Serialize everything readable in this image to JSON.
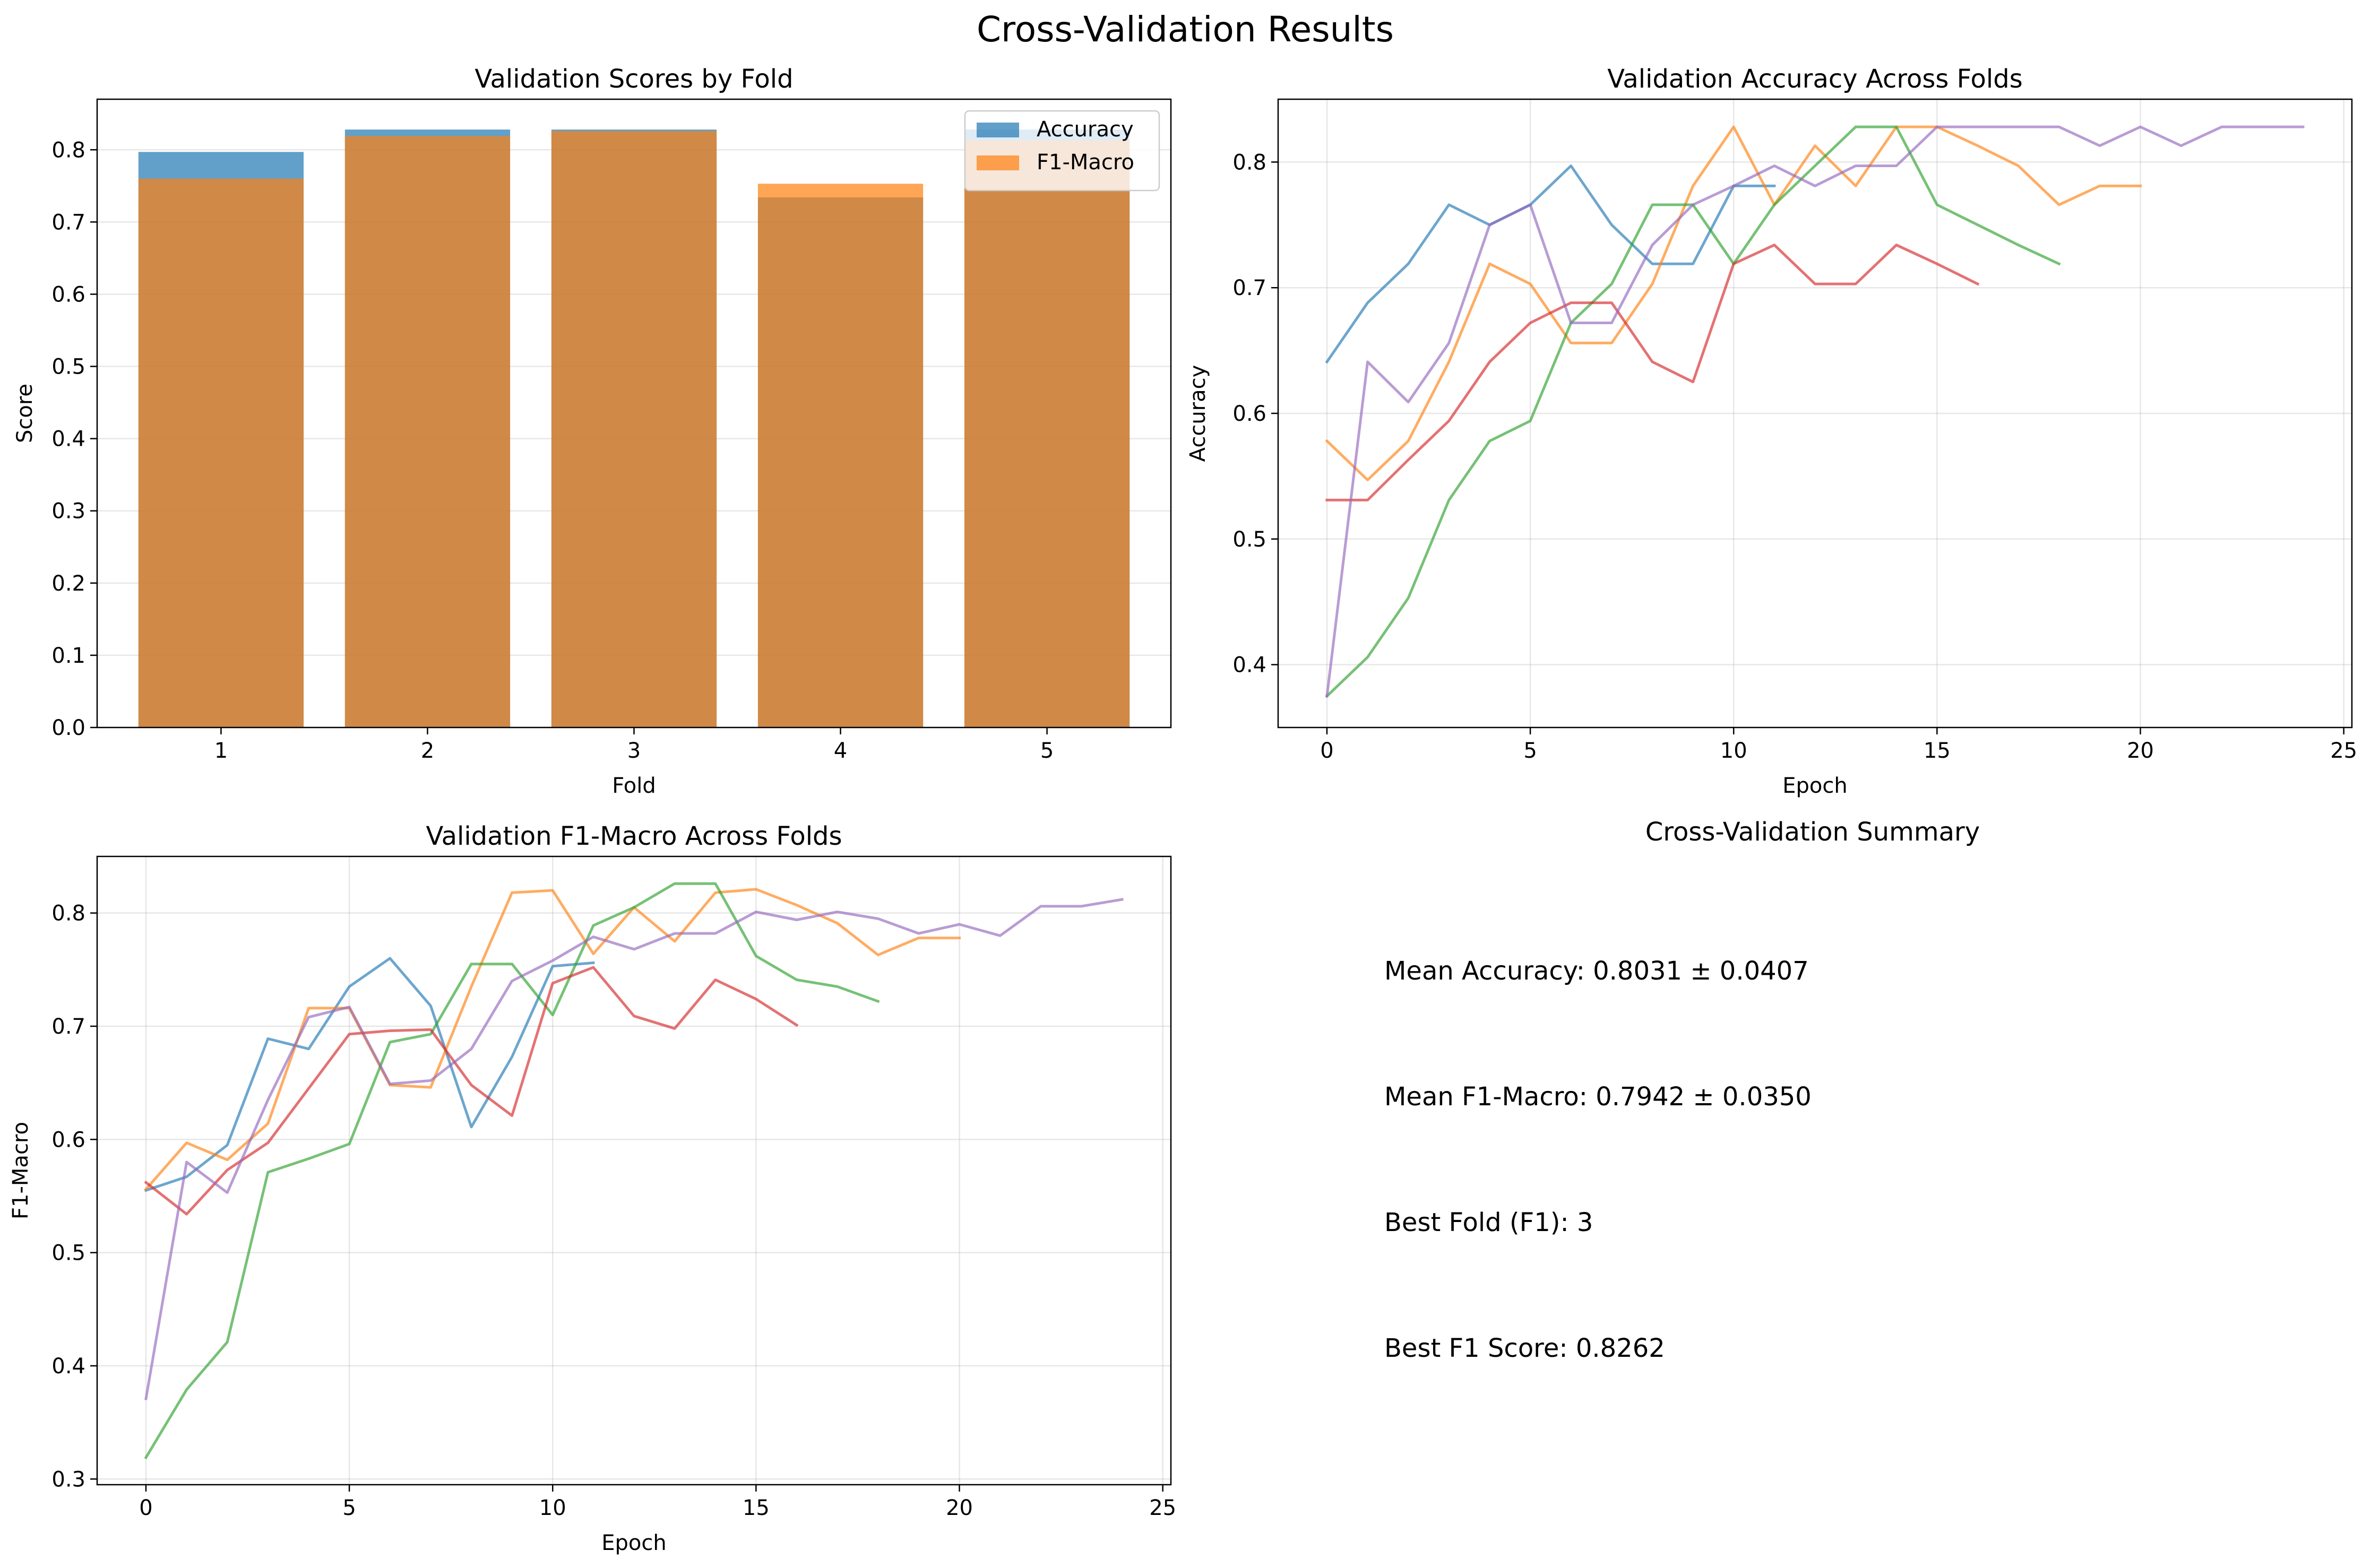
{
  "figure": {
    "suptitle": "Cross-Validation Results"
  },
  "chart_data": [
    {
      "type": "bar",
      "title": "Validation Scores by Fold",
      "xlabel": "Fold",
      "ylabel": "Score",
      "categories": [
        "1",
        "2",
        "3",
        "4",
        "5"
      ],
      "ylim": [
        0,
        0.87
      ],
      "yticks": [
        0.0,
        0.1,
        0.2,
        0.3,
        0.4,
        0.5,
        0.6,
        0.7,
        0.8
      ],
      "grid": true,
      "legend": "top-right",
      "series": [
        {
          "name": "Accuracy",
          "color": "#1f77b4",
          "values": [
            0.797,
            0.828,
            0.828,
            0.734,
            0.828
          ]
        },
        {
          "name": "F1-Macro",
          "color": "#ff7f0e",
          "values": [
            0.76,
            0.819,
            0.826,
            0.753,
            0.813
          ]
        }
      ]
    },
    {
      "type": "line",
      "title": "Validation Accuracy Across Folds",
      "xlabel": "Epoch",
      "ylabel": "Accuracy",
      "xlim": [
        -1.2,
        25.2
      ],
      "ylim": [
        0.35,
        0.85
      ],
      "xticks": [
        0,
        5,
        10,
        15,
        20,
        25
      ],
      "yticks": [
        0.4,
        0.5,
        0.6,
        0.7,
        0.8
      ],
      "grid": true,
      "series": [
        {
          "color": "#1f77b4",
          "values": [
            0.641,
            0.688,
            0.719,
            0.766,
            0.75,
            0.766,
            0.797,
            0.75,
            0.719,
            0.719,
            0.781,
            0.781
          ]
        },
        {
          "color": "#ff7f0e",
          "values": [
            0.578,
            0.547,
            0.578,
            0.641,
            0.719,
            0.703,
            0.656,
            0.656,
            0.703,
            0.781,
            0.828,
            0.766,
            0.813,
            0.781,
            0.828,
            0.828,
            0.813,
            0.797,
            0.766,
            0.781,
            0.781
          ]
        },
        {
          "color": "#2ca02c",
          "values": [
            0.375,
            0.406,
            0.453,
            0.531,
            0.578,
            0.594,
            0.672,
            0.703,
            0.766,
            0.766,
            0.719,
            0.766,
            0.797,
            0.828,
            0.828,
            0.766,
            0.75,
            0.734,
            0.719
          ]
        },
        {
          "color": "#d62728",
          "values": [
            0.531,
            0.531,
            0.563,
            0.594,
            0.641,
            0.672,
            0.688,
            0.688,
            0.641,
            0.625,
            0.719,
            0.734,
            0.703,
            0.703,
            0.734,
            0.719,
            0.703
          ]
        },
        {
          "color": "#9467bd",
          "values": [
            0.375,
            0.641,
            0.609,
            0.656,
            0.75,
            0.766,
            0.672,
            0.672,
            0.734,
            0.766,
            0.781,
            0.797,
            0.781,
            0.797,
            0.797,
            0.828,
            0.828,
            0.828,
            0.828,
            0.813,
            0.828,
            0.813,
            0.828,
            0.828,
            0.828
          ]
        }
      ]
    },
    {
      "type": "line",
      "title": "Validation F1-Macro Across Folds",
      "xlabel": "Epoch",
      "ylabel": "F1-Macro",
      "xlim": [
        -1.2,
        25.2
      ],
      "ylim": [
        0.295,
        0.85
      ],
      "xticks": [
        0,
        5,
        10,
        15,
        20,
        25
      ],
      "yticks": [
        0.3,
        0.4,
        0.5,
        0.6,
        0.7,
        0.8
      ],
      "grid": true,
      "series": [
        {
          "color": "#1f77b4",
          "values": [
            0.555,
            0.567,
            0.595,
            0.689,
            0.68,
            0.735,
            0.76,
            0.718,
            0.611,
            0.673,
            0.753,
            0.756
          ]
        },
        {
          "color": "#ff7f0e",
          "values": [
            0.556,
            0.597,
            0.582,
            0.614,
            0.716,
            0.716,
            0.648,
            0.646,
            0.735,
            0.818,
            0.82,
            0.764,
            0.805,
            0.775,
            0.818,
            0.821,
            0.807,
            0.791,
            0.763,
            0.778,
            0.778
          ]
        },
        {
          "color": "#2ca02c",
          "values": [
            0.319,
            0.379,
            0.421,
            0.571,
            0.583,
            0.596,
            0.686,
            0.693,
            0.755,
            0.755,
            0.71,
            0.789,
            0.805,
            0.826,
            0.826,
            0.762,
            0.741,
            0.735,
            0.722
          ]
        },
        {
          "color": "#d62728",
          "values": [
            0.562,
            0.534,
            0.573,
            0.597,
            0.645,
            0.693,
            0.696,
            0.697,
            0.648,
            0.621,
            0.738,
            0.752,
            0.709,
            0.698,
            0.741,
            0.724,
            0.701
          ]
        },
        {
          "color": "#9467bd",
          "values": [
            0.371,
            0.58,
            0.553,
            0.635,
            0.708,
            0.717,
            0.649,
            0.652,
            0.68,
            0.74,
            0.758,
            0.779,
            0.768,
            0.782,
            0.782,
            0.801,
            0.794,
            0.801,
            0.795,
            0.782,
            0.79,
            0.78,
            0.806,
            0.806,
            0.812
          ]
        }
      ]
    }
  ],
  "summary": {
    "title": "Cross-Validation Summary",
    "lines": [
      "Mean Accuracy: 0.8031 ± 0.0407",
      "Mean F1-Macro: 0.7942 ± 0.0350",
      "Best Fold (F1): 3",
      "Best F1 Score: 0.8262"
    ]
  }
}
